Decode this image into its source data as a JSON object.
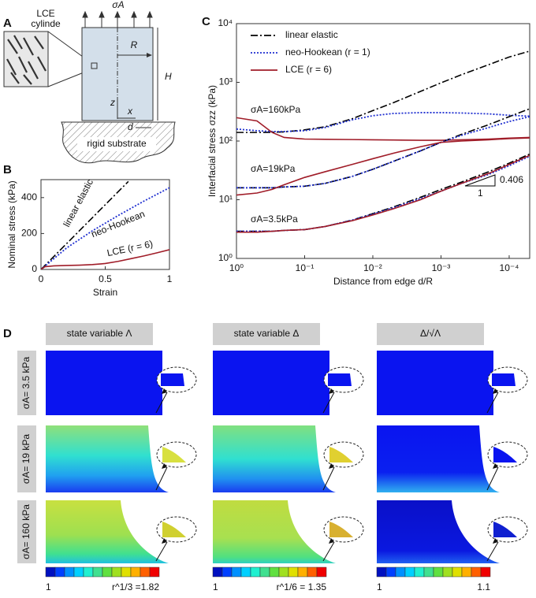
{
  "panel_a": {
    "label": "A",
    "lce_label": [
      "LCE",
      "cylinde"
    ],
    "load": "σA",
    "radius": "R",
    "height": "H",
    "z_axis": "z",
    "x_axis": "x",
    "distance": "d",
    "substrate": "rigid substrate"
  },
  "chart_data": [
    {
      "type": "line",
      "label": "B",
      "x_label": "Strain",
      "y_label": "Nominal stress (kPa)",
      "xlim": [
        0,
        1
      ],
      "ylim": [
        0,
        500
      ],
      "xticks": [
        0,
        0.5,
        1
      ],
      "yticks": [
        0,
        200,
        400
      ],
      "series": [
        {
          "name": "linear elastic",
          "color": "#000000",
          "style": "dashdot",
          "x": [
            0,
            0.68
          ],
          "values": [
            0,
            490
          ]
        },
        {
          "name": "neo-Hookean",
          "color": "#1f2fd0",
          "style": "dotted",
          "x": [
            0,
            0.2,
            0.4,
            0.6,
            0.8,
            1
          ],
          "values": [
            0,
            120,
            215,
            300,
            380,
            455
          ]
        },
        {
          "name": "LCE (r = 6)",
          "color": "#a01c28",
          "style": "solid",
          "x": [
            0,
            0.03,
            0.1,
            0.2,
            0.3,
            0.4,
            0.5,
            0.6,
            0.7,
            0.8,
            0.9,
            1
          ],
          "values": [
            0,
            15,
            20,
            22,
            24,
            27,
            33,
            45,
            60,
            75,
            92,
            110
          ]
        }
      ]
    },
    {
      "type": "line",
      "label": "C",
      "x_label": "Distance from edge d/R",
      "y_label": "Interfacial stress σzz (kPa)",
      "xscale": "log",
      "yscale": "log",
      "xlim": [
        1,
        5e-05
      ],
      "ylim": [
        1,
        10000
      ],
      "xticks": [
        {
          "value": 1,
          "label": "10⁰"
        },
        {
          "value": 0.1,
          "label": "10⁻¹"
        },
        {
          "value": 0.01,
          "label": "10⁻²"
        },
        {
          "value": 0.001,
          "label": "10⁻³"
        },
        {
          "value": 0.0001,
          "label": "10⁻⁴"
        }
      ],
      "yticks": [
        {
          "value": 1,
          "label": "10⁰"
        },
        {
          "value": 10,
          "label": "10¹"
        },
        {
          "value": 100,
          "label": "10²"
        },
        {
          "value": 1000,
          "label": "10³"
        },
        {
          "value": 10000,
          "label": "10⁴"
        }
      ],
      "legend": "upper-left",
      "annotations": [
        "σA=160kPa",
        "σA=19kPa",
        "σA=3.5kPa",
        "1",
        "0.406"
      ],
      "x": [
        1,
        0.5,
        0.3,
        0.2,
        0.1,
        0.05,
        0.02,
        0.01,
        0.005,
        0.002,
        0.001,
        0.0005,
        0.0002,
        0.0001,
        5e-05
      ],
      "series": [
        {
          "name": "linear elastic",
          "color": "#000000",
          "style": "dashdot",
          "values": [
            140,
            140,
            141,
            143,
            155,
            175,
            240,
            330,
            450,
            700,
            980,
            1350,
            2000,
            2700,
            3400
          ]
        },
        {
          "name": "neo-Hookean (r = 1)",
          "color": "#1f2fd0",
          "style": "dotted",
          "values": [
            160,
            150,
            145,
            145,
            150,
            170,
            230,
            270,
            295,
            305,
            305,
            300,
            290,
            275,
            265
          ]
        },
        {
          "name": "LCE (r = 6)",
          "color": "#a01c28",
          "style": "solid",
          "values": [
            250,
            220,
            140,
            115,
            108,
            107,
            106,
            105,
            104,
            103,
            103,
            105,
            108,
            112,
            115
          ]
        },
        {
          "color": "#000000",
          "style": "dashdot",
          "values": [
            16,
            16,
            16,
            16.5,
            17,
            19,
            25,
            33,
            45,
            68,
            95,
            130,
            190,
            260,
            355
          ]
        },
        {
          "color": "#1f2fd0",
          "style": "dotted",
          "values": [
            16,
            16,
            16,
            16.5,
            17,
            19,
            25,
            33,
            45,
            68,
            95,
            125,
            170,
            215,
            260
          ]
        },
        {
          "color": "#a01c28",
          "style": "solid",
          "values": [
            12,
            13,
            15,
            18,
            24,
            30,
            40,
            50,
            62,
            80,
            95,
            100,
            105,
            110,
            113
          ]
        },
        {
          "color": "#000000",
          "style": "dashdot",
          "values": [
            2.9,
            2.9,
            2.9,
            3.0,
            3.1,
            3.5,
            4.5,
            5.8,
            7.5,
            11,
            15,
            20,
            30,
            42,
            60
          ]
        },
        {
          "color": "#1f2fd0",
          "style": "dotted",
          "values": [
            2.9,
            2.9,
            2.9,
            3.0,
            3.1,
            3.5,
            4.5,
            5.7,
            7.3,
            10.5,
            14,
            19,
            27,
            38,
            55
          ]
        },
        {
          "color": "#a01c28",
          "style": "solid",
          "values": [
            2.8,
            2.8,
            2.9,
            3.0,
            3.1,
            3.5,
            4.4,
            5.5,
            7,
            10,
            14,
            19,
            28,
            40,
            57
          ]
        }
      ]
    }
  ],
  "panel_d": {
    "label": "D",
    "columns": [
      "state variable Λ",
      "state variable Δ",
      "Δ/√Λ"
    ],
    "rows": [
      "σA= 3.5 kPa",
      "σA= 19 kPa",
      "σA= 160 kPa"
    ],
    "colorbars": [
      [
        "1",
        "r^1/3 =1.82"
      ],
      [
        "1",
        "r^1/6 = 1.35"
      ],
      [
        "1",
        "1.1"
      ]
    ]
  }
}
